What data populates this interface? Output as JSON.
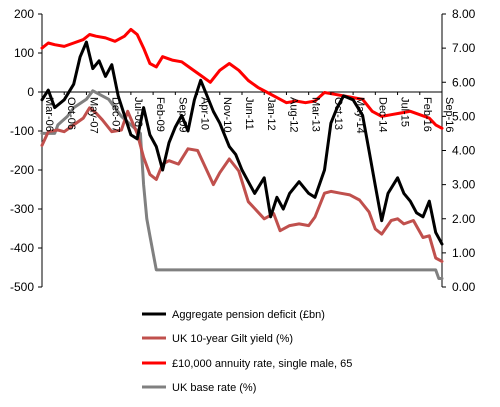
{
  "chart_data": {
    "type": "line",
    "left_axis": {
      "ylim": [
        -500,
        200
      ],
      "ticks": [
        "200",
        "100",
        "0",
        "-100",
        "-200",
        "-300",
        "-400",
        "-500"
      ]
    },
    "right_axis": {
      "ylim": [
        0,
        8
      ],
      "ticks": [
        "8.00",
        "7.00",
        "6.00",
        "5.00",
        "4.00",
        "3.00",
        "2.00",
        "1.00",
        "0.00"
      ]
    },
    "x_range": [
      "2006-03",
      "2016-09"
    ],
    "x_ticks": [
      "Mar-06",
      "Oct-06",
      "May-07",
      "Dec-07",
      "Jul-08",
      "Feb-09",
      "Sep-09",
      "Apr-10",
      "Nov-10",
      "Jun-11",
      "Jan-12",
      "Aug-12",
      "Mar-13",
      "Oct-13",
      "May-14",
      "Dec-14",
      "Jul-15",
      "Feb-16",
      "Sep-16"
    ],
    "x_tick_dates": [
      "2006-03",
      "2006-10",
      "2007-05",
      "2007-12",
      "2008-07",
      "2009-02",
      "2009-09",
      "2010-04",
      "2010-11",
      "2011-06",
      "2012-01",
      "2012-08",
      "2013-03",
      "2013-10",
      "2014-05",
      "2014-12",
      "2015-07",
      "2016-02",
      "2016-09"
    ],
    "legend_position": "bottom",
    "grid": false,
    "series": [
      {
        "name": "Aggregate pension deficit (£bn)",
        "axis": "left",
        "color": "#000000",
        "points": [
          [
            "2006-03",
            -20
          ],
          [
            "2006-05",
            5
          ],
          [
            "2006-07",
            -40
          ],
          [
            "2006-10",
            -20
          ],
          [
            "2007-01",
            20
          ],
          [
            "2007-03",
            90
          ],
          [
            "2007-05",
            128
          ],
          [
            "2007-07",
            60
          ],
          [
            "2007-09",
            80
          ],
          [
            "2007-11",
            40
          ],
          [
            "2008-01",
            70
          ],
          [
            "2008-03",
            -10
          ],
          [
            "2008-05",
            -60
          ],
          [
            "2008-07",
            -110
          ],
          [
            "2008-09",
            -120
          ],
          [
            "2008-11",
            -40
          ],
          [
            "2009-01",
            -110
          ],
          [
            "2009-03",
            -140
          ],
          [
            "2009-05",
            -200
          ],
          [
            "2009-07",
            -130
          ],
          [
            "2009-09",
            -90
          ],
          [
            "2009-11",
            -60
          ],
          [
            "2010-01",
            -100
          ],
          [
            "2010-03",
            -20
          ],
          [
            "2010-05",
            30
          ],
          [
            "2010-07",
            -10
          ],
          [
            "2010-09",
            -50
          ],
          [
            "2010-11",
            -80
          ],
          [
            "2011-02",
            -140
          ],
          [
            "2011-04",
            -160
          ],
          [
            "2011-06",
            -200
          ],
          [
            "2011-08",
            -230
          ],
          [
            "2011-10",
            -260
          ],
          [
            "2012-01",
            -220
          ],
          [
            "2012-03",
            -320
          ],
          [
            "2012-05",
            -270
          ],
          [
            "2012-07",
            -300
          ],
          [
            "2012-09",
            -260
          ],
          [
            "2012-12",
            -230
          ],
          [
            "2013-03",
            -260
          ],
          [
            "2013-05",
            -270
          ],
          [
            "2013-08",
            -200
          ],
          [
            "2013-10",
            -80
          ],
          [
            "2013-12",
            -40
          ],
          [
            "2014-02",
            -10
          ],
          [
            "2014-05",
            -20
          ],
          [
            "2014-08",
            -60
          ],
          [
            "2014-10",
            -150
          ],
          [
            "2014-12",
            -240
          ],
          [
            "2015-02",
            -330
          ],
          [
            "2015-04",
            -260
          ],
          [
            "2015-07",
            -220
          ],
          [
            "2015-09",
            -260
          ],
          [
            "2015-11",
            -280
          ],
          [
            "2016-01",
            -310
          ],
          [
            "2016-03",
            -320
          ],
          [
            "2016-05",
            -280
          ],
          [
            "2016-07",
            -360
          ],
          [
            "2016-09",
            -390
          ]
        ]
      },
      {
        "name": "UK 10-year Gilt yield (%)",
        "axis": "right",
        "color": "#c0504d",
        "points": [
          [
            "2006-03",
            4.15
          ],
          [
            "2006-05",
            4.55
          ],
          [
            "2006-08",
            4.6
          ],
          [
            "2006-10",
            4.55
          ],
          [
            "2007-01",
            4.75
          ],
          [
            "2007-04",
            4.95
          ],
          [
            "2007-06",
            5.25
          ],
          [
            "2007-08",
            5.1
          ],
          [
            "2007-10",
            4.9
          ],
          [
            "2008-01",
            4.55
          ],
          [
            "2008-04",
            4.6
          ],
          [
            "2008-06",
            5.15
          ],
          [
            "2008-09",
            4.5
          ],
          [
            "2008-11",
            3.8
          ],
          [
            "2009-01",
            3.3
          ],
          [
            "2009-03",
            3.15
          ],
          [
            "2009-05",
            3.6
          ],
          [
            "2009-07",
            3.7
          ],
          [
            "2009-10",
            3.6
          ],
          [
            "2010-01",
            4.05
          ],
          [
            "2010-04",
            4.0
          ],
          [
            "2010-07",
            3.4
          ],
          [
            "2010-09",
            3.0
          ],
          [
            "2010-11",
            3.35
          ],
          [
            "2011-02",
            3.75
          ],
          [
            "2011-05",
            3.4
          ],
          [
            "2011-08",
            2.5
          ],
          [
            "2011-10",
            2.3
          ],
          [
            "2012-01",
            2.0
          ],
          [
            "2012-04",
            2.15
          ],
          [
            "2012-06",
            1.65
          ],
          [
            "2012-09",
            1.8
          ],
          [
            "2012-12",
            1.85
          ],
          [
            "2013-03",
            1.8
          ],
          [
            "2013-05",
            2.05
          ],
          [
            "2013-08",
            2.75
          ],
          [
            "2013-10",
            2.8
          ],
          [
            "2014-01",
            2.75
          ],
          [
            "2014-04",
            2.7
          ],
          [
            "2014-07",
            2.55
          ],
          [
            "2014-10",
            2.2
          ],
          [
            "2014-12",
            1.7
          ],
          [
            "2015-02",
            1.55
          ],
          [
            "2015-05",
            1.95
          ],
          [
            "2015-07",
            2.0
          ],
          [
            "2015-09",
            1.85
          ],
          [
            "2015-12",
            1.95
          ],
          [
            "2016-03",
            1.45
          ],
          [
            "2016-05",
            1.5
          ],
          [
            "2016-07",
            0.85
          ],
          [
            "2016-09",
            0.75
          ]
        ]
      },
      {
        "name": "£10,000 annuity rate, single male, 65",
        "axis": "right",
        "color": "#ff0000",
        "points": [
          [
            "2006-03",
            7.0
          ],
          [
            "2006-05",
            7.15
          ],
          [
            "2006-07",
            7.1
          ],
          [
            "2006-10",
            7.05
          ],
          [
            "2007-01",
            7.15
          ],
          [
            "2007-04",
            7.25
          ],
          [
            "2007-06",
            7.4
          ],
          [
            "2007-08",
            7.35
          ],
          [
            "2007-11",
            7.3
          ],
          [
            "2008-02",
            7.2
          ],
          [
            "2008-05",
            7.35
          ],
          [
            "2008-07",
            7.55
          ],
          [
            "2008-09",
            7.4
          ],
          [
            "2008-11",
            7.0
          ],
          [
            "2009-01",
            6.55
          ],
          [
            "2009-03",
            6.45
          ],
          [
            "2009-05",
            6.75
          ],
          [
            "2009-08",
            6.65
          ],
          [
            "2009-11",
            6.6
          ],
          [
            "2010-02",
            6.4
          ],
          [
            "2010-05",
            6.2
          ],
          [
            "2010-08",
            6.0
          ],
          [
            "2010-11",
            6.35
          ],
          [
            "2011-02",
            6.55
          ],
          [
            "2011-05",
            6.35
          ],
          [
            "2011-08",
            6.05
          ],
          [
            "2011-11",
            5.85
          ],
          [
            "2012-02",
            5.7
          ],
          [
            "2012-05",
            5.55
          ],
          [
            "2012-08",
            5.4
          ],
          [
            "2012-11",
            5.45
          ],
          [
            "2013-02",
            5.4
          ],
          [
            "2013-05",
            5.45
          ],
          [
            "2013-08",
            5.7
          ],
          [
            "2013-11",
            5.65
          ],
          [
            "2014-02",
            5.6
          ],
          [
            "2014-05",
            5.55
          ],
          [
            "2014-08",
            5.5
          ],
          [
            "2014-11",
            5.15
          ],
          [
            "2015-02",
            5.0
          ],
          [
            "2015-05",
            5.05
          ],
          [
            "2015-08",
            5.1
          ],
          [
            "2015-11",
            5.15
          ],
          [
            "2016-02",
            5.05
          ],
          [
            "2016-05",
            4.95
          ],
          [
            "2016-07",
            4.75
          ],
          [
            "2016-09",
            4.65
          ]
        ]
      },
      {
        "name": "UK base rate (%)",
        "axis": "right",
        "color": "#808080",
        "points": [
          [
            "2006-03",
            4.5
          ],
          [
            "2006-07",
            4.5
          ],
          [
            "2006-08",
            4.75
          ],
          [
            "2006-11",
            5.0
          ],
          [
            "2007-01",
            5.25
          ],
          [
            "2007-05",
            5.5
          ],
          [
            "2007-07",
            5.75
          ],
          [
            "2007-12",
            5.5
          ],
          [
            "2008-02",
            5.25
          ],
          [
            "2008-04",
            5.0
          ],
          [
            "2008-10",
            4.5
          ],
          [
            "2008-11",
            3.0
          ],
          [
            "2008-12",
            2.0
          ],
          [
            "2009-01",
            1.5
          ],
          [
            "2009-02",
            1.0
          ],
          [
            "2009-03",
            0.5
          ],
          [
            "2016-07",
            0.5
          ],
          [
            "2016-08",
            0.25
          ],
          [
            "2016-09",
            0.25
          ]
        ]
      }
    ]
  }
}
